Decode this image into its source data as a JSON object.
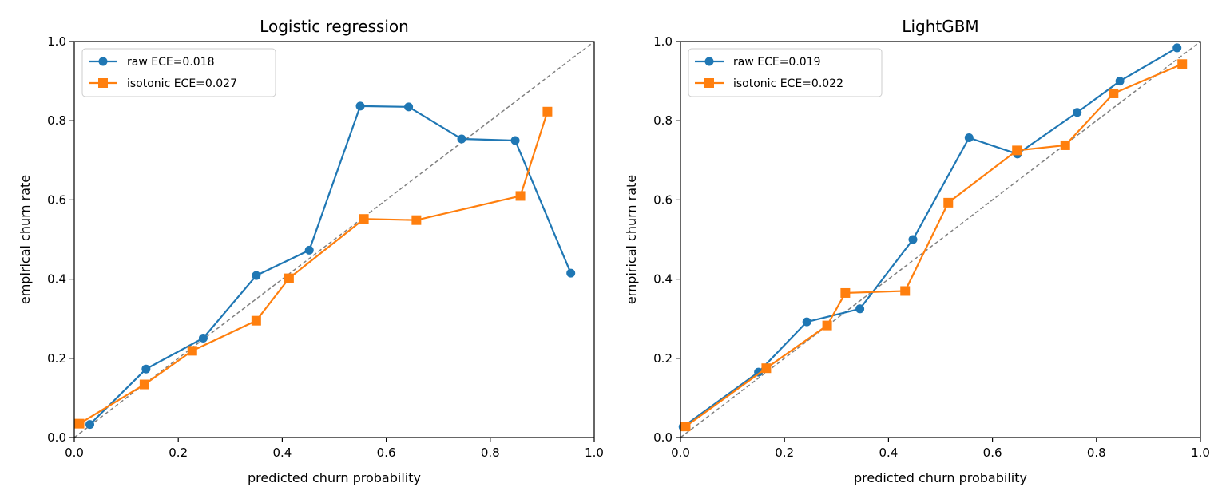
{
  "chart_data": [
    {
      "type": "line",
      "title": "Logistic regression",
      "xlabel": "predicted churn probability",
      "ylabel": "empirical churn rate",
      "xlim": [
        0,
        1
      ],
      "ylim": [
        0,
        1
      ],
      "xticks": [
        "0.0",
        "0.2",
        "0.4",
        "0.6",
        "0.8",
        "1.0"
      ],
      "yticks": [
        "0.0",
        "0.2",
        "0.4",
        "0.6",
        "0.8",
        "1.0"
      ],
      "grid": false,
      "legend_position": "top-left",
      "reference_line": "diagonal",
      "series": [
        {
          "name": "raw  ECE=0.018",
          "color": "#1f77b4",
          "marker": "circle",
          "x": [
            0.03,
            0.138,
            0.248,
            0.35,
            0.452,
            0.55,
            0.643,
            0.745,
            0.848,
            0.955
          ],
          "y": [
            0.033,
            0.173,
            0.251,
            0.409,
            0.473,
            0.837,
            0.835,
            0.754,
            0.75,
            0.415
          ]
        },
        {
          "name": "isotonic  ECE=0.027",
          "color": "#ff7f0e",
          "marker": "square",
          "x": [
            0.01,
            0.135,
            0.227,
            0.35,
            0.413,
            0.557,
            0.658,
            0.858,
            0.91
          ],
          "y": [
            0.035,
            0.134,
            0.219,
            0.295,
            0.402,
            0.552,
            0.549,
            0.61,
            0.823
          ]
        }
      ]
    },
    {
      "type": "line",
      "title": "LightGBM",
      "xlabel": "predicted churn probability",
      "ylabel": "empirical churn rate",
      "xlim": [
        0,
        1
      ],
      "ylim": [
        0,
        1
      ],
      "xticks": [
        "0.0",
        "0.2",
        "0.4",
        "0.6",
        "0.8",
        "1.0"
      ],
      "yticks": [
        "0.0",
        "0.2",
        "0.4",
        "0.6",
        "0.8",
        "1.0"
      ],
      "grid": false,
      "legend_position": "top-left",
      "reference_line": "diagonal",
      "series": [
        {
          "name": "raw  ECE=0.019",
          "color": "#1f77b4",
          "marker": "circle",
          "x": [
            0.005,
            0.15,
            0.243,
            0.345,
            0.447,
            0.555,
            0.648,
            0.763,
            0.845,
            0.955
          ],
          "y": [
            0.027,
            0.165,
            0.292,
            0.325,
            0.5,
            0.757,
            0.716,
            0.821,
            0.9,
            0.984
          ]
        },
        {
          "name": "isotonic  ECE=0.022",
          "color": "#ff7f0e",
          "marker": "square",
          "x": [
            0.01,
            0.165,
            0.282,
            0.317,
            0.432,
            0.515,
            0.647,
            0.74,
            0.833,
            0.965
          ],
          "y": [
            0.028,
            0.175,
            0.283,
            0.365,
            0.37,
            0.593,
            0.725,
            0.738,
            0.869,
            0.943
          ]
        }
      ]
    }
  ]
}
